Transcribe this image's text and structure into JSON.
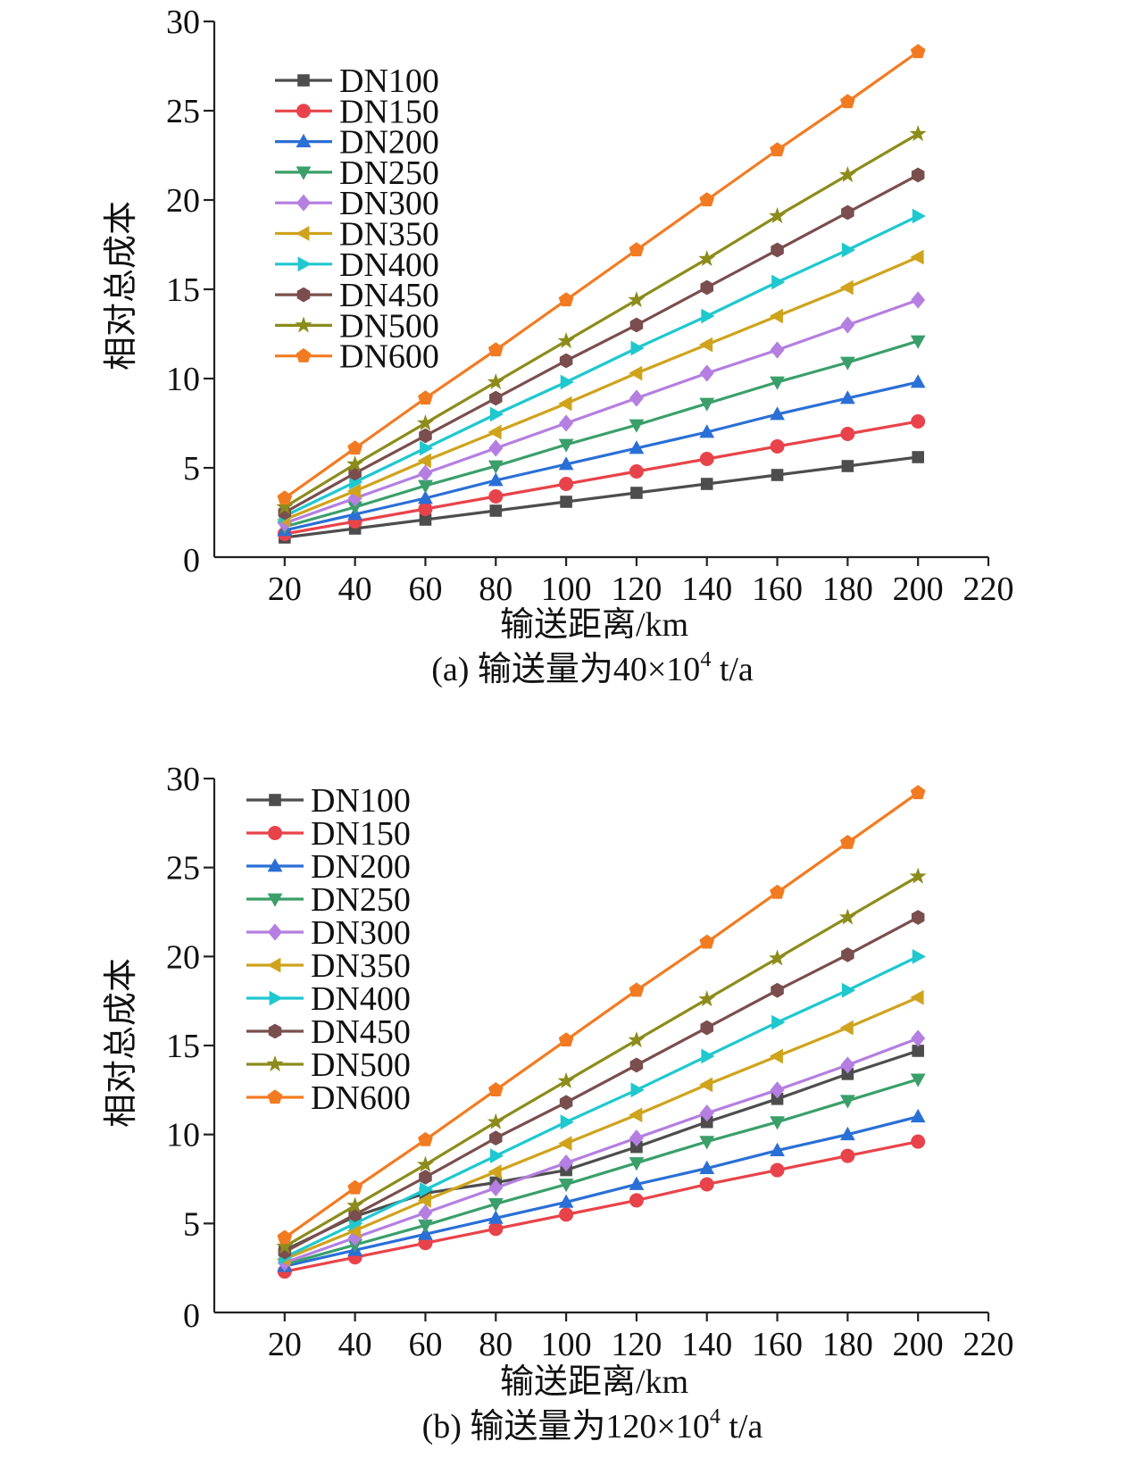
{
  "chart_data": [
    {
      "type": "line",
      "caption_prefix": "(a) 输送量为40×10",
      "caption_sup": "4",
      "caption_suffix": " t/a",
      "xlabel": "输送距离/km",
      "ylabel": "相对总成本",
      "xlim": [
        0,
        220
      ],
      "ylim": [
        0,
        30
      ],
      "x_ticks": [
        20,
        40,
        60,
        80,
        100,
        120,
        140,
        160,
        180,
        200,
        220
      ],
      "y_ticks": [
        0,
        5,
        10,
        15,
        20,
        25,
        30
      ],
      "grid": false,
      "legend_position": "top-left",
      "x": [
        20,
        40,
        60,
        80,
        100,
        120,
        140,
        160,
        180,
        200
      ],
      "series": [
        {
          "name": "DN100",
          "color": "#4d4d4d",
          "marker": "square",
          "values": [
            1.1,
            1.6,
            2.1,
            2.6,
            3.1,
            3.6,
            4.1,
            4.6,
            5.1,
            5.6
          ]
        },
        {
          "name": "DN150",
          "color": "#e8434a",
          "marker": "circle",
          "values": [
            1.3,
            2.0,
            2.7,
            3.4,
            4.1,
            4.8,
            5.5,
            6.2,
            6.9,
            7.6
          ]
        },
        {
          "name": "DN200",
          "color": "#2a6fd6",
          "marker": "triangle-up",
          "values": [
            1.5,
            2.4,
            3.3,
            4.3,
            5.2,
            6.1,
            7.0,
            8.0,
            8.9,
            9.8
          ]
        },
        {
          "name": "DN250",
          "color": "#3a9f6a",
          "marker": "triangle-down",
          "values": [
            1.7,
            2.8,
            4.0,
            5.1,
            6.3,
            7.4,
            8.6,
            9.8,
            10.9,
            12.1
          ]
        },
        {
          "name": "DN300",
          "color": "#b47fe0",
          "marker": "diamond",
          "values": [
            1.9,
            3.3,
            4.7,
            6.1,
            7.5,
            8.9,
            10.3,
            11.6,
            13.0,
            14.4
          ]
        },
        {
          "name": "DN350",
          "color": "#cfa31c",
          "marker": "triangle-left",
          "values": [
            2.1,
            3.7,
            5.4,
            7.0,
            8.6,
            10.3,
            11.9,
            13.5,
            15.1,
            16.8
          ]
        },
        {
          "name": "DN400",
          "color": "#1fc8cf",
          "marker": "triangle-right",
          "values": [
            2.3,
            4.2,
            6.1,
            8.0,
            9.8,
            11.7,
            13.5,
            15.4,
            17.2,
            19.1
          ]
        },
        {
          "name": "DN450",
          "color": "#7a4e4e",
          "marker": "hexagon",
          "values": [
            2.5,
            4.7,
            6.8,
            8.9,
            11.0,
            13.0,
            15.1,
            17.2,
            19.3,
            21.4
          ]
        },
        {
          "name": "DN500",
          "color": "#8c8c1c",
          "marker": "star",
          "values": [
            2.8,
            5.2,
            7.5,
            9.8,
            12.1,
            14.4,
            16.7,
            19.1,
            21.4,
            23.7
          ]
        },
        {
          "name": "DN600",
          "color": "#f27b22",
          "marker": "pentagon",
          "values": [
            3.3,
            6.1,
            8.9,
            11.6,
            14.4,
            17.2,
            20.0,
            22.8,
            25.5,
            28.3
          ]
        }
      ]
    },
    {
      "type": "line",
      "caption_prefix": "(b) 输送量为120×10",
      "caption_sup": "4",
      "caption_suffix": " t/a",
      "xlabel": "输送距离/km",
      "ylabel": "相对总成本",
      "xlim": [
        0,
        220
      ],
      "ylim": [
        0,
        30
      ],
      "x_ticks": [
        20,
        40,
        60,
        80,
        100,
        120,
        140,
        160,
        180,
        200,
        220
      ],
      "y_ticks": [
        0,
        5,
        10,
        15,
        20,
        25,
        30
      ],
      "grid": false,
      "legend_position": "top-left",
      "x": [
        20,
        40,
        60,
        80,
        100,
        120,
        140,
        160,
        180,
        200
      ],
      "series": [
        {
          "name": "DN100",
          "color": "#4d4d4d",
          "marker": "square",
          "values": [
            3.5,
            5.4,
            6.7,
            7.3,
            8.0,
            9.3,
            10.7,
            12.0,
            13.4,
            14.7
          ]
        },
        {
          "name": "DN150",
          "color": "#e8434a",
          "marker": "circle",
          "values": [
            2.3,
            3.1,
            3.9,
            4.7,
            5.5,
            6.3,
            7.2,
            8.0,
            8.8,
            9.6
          ]
        },
        {
          "name": "DN200",
          "color": "#2a6fd6",
          "marker": "triangle-up",
          "values": [
            2.6,
            3.5,
            4.4,
            5.3,
            6.2,
            7.2,
            8.1,
            9.1,
            10.0,
            11.0
          ]
        },
        {
          "name": "DN250",
          "color": "#3a9f6a",
          "marker": "triangle-down",
          "values": [
            2.7,
            3.8,
            4.9,
            6.1,
            7.2,
            8.4,
            9.6,
            10.7,
            11.9,
            13.1
          ]
        },
        {
          "name": "DN300",
          "color": "#b47fe0",
          "marker": "diamond",
          "values": [
            2.8,
            4.2,
            5.6,
            7.0,
            8.4,
            9.8,
            11.2,
            12.5,
            13.9,
            15.4
          ]
        },
        {
          "name": "DN350",
          "color": "#cfa31c",
          "marker": "triangle-left",
          "values": [
            3.0,
            4.6,
            6.3,
            7.9,
            9.5,
            11.1,
            12.8,
            14.4,
            16.0,
            17.7
          ]
        },
        {
          "name": "DN400",
          "color": "#1fc8cf",
          "marker": "triangle-right",
          "values": [
            3.1,
            5.0,
            6.9,
            8.8,
            10.7,
            12.5,
            14.4,
            16.3,
            18.1,
            20.0
          ]
        },
        {
          "name": "DN450",
          "color": "#7a4e4e",
          "marker": "hexagon",
          "values": [
            3.4,
            5.5,
            7.6,
            9.8,
            11.8,
            13.9,
            16.0,
            18.1,
            20.1,
            22.2
          ]
        },
        {
          "name": "DN500",
          "color": "#8c8c1c",
          "marker": "star",
          "values": [
            3.7,
            6.0,
            8.3,
            10.7,
            13.0,
            15.3,
            17.6,
            19.9,
            22.2,
            24.5
          ]
        },
        {
          "name": "DN600",
          "color": "#f27b22",
          "marker": "pentagon",
          "values": [
            4.2,
            7.0,
            9.7,
            12.5,
            15.3,
            18.1,
            20.8,
            23.6,
            26.4,
            29.2
          ]
        }
      ]
    }
  ]
}
